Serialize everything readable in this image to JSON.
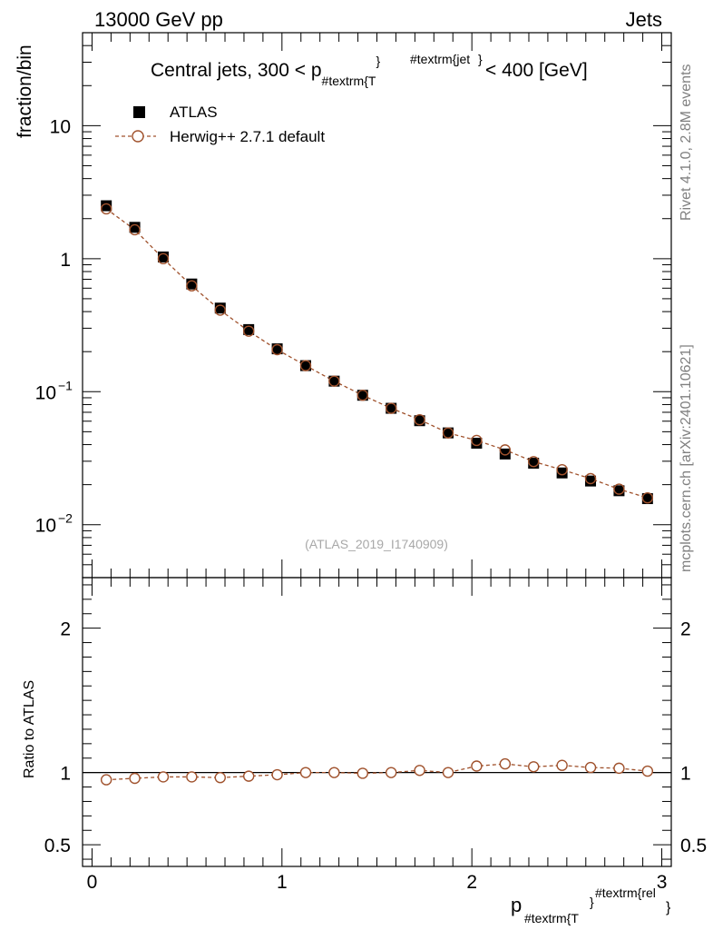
{
  "header": {
    "energy_label": "13000 GeV pp",
    "process_label": "Jets"
  },
  "side_labels": {
    "rivet": "Rivet 4.1.0,  2.8M events",
    "mcplots": "mcplots.cern.ch [arXiv:2401.10621]"
  },
  "colors": {
    "data": "#000000",
    "mc": "#a0522d",
    "ref_line": "#000000"
  },
  "chart_data": [
    {
      "type": "scatter",
      "panel": "main",
      "title_main": "Central jets, 300 < p",
      "title_sub": "#textrm{T",
      "title_sup": "#textrm{jet",
      "title_close": "}",
      "title_tail": " < 400 [GeV]",
      "ylabel": "fraction/bin",
      "yscale": "log",
      "ylim": [
        0.004,
        50
      ],
      "xlim": [
        -0.05,
        3.05
      ],
      "yticks": [
        {
          "value": 10,
          "label": "10",
          "exp": ""
        },
        {
          "value": 1,
          "label": "1",
          "exp": ""
        },
        {
          "value": 0.1,
          "label": "10",
          "exp": "−1"
        },
        {
          "value": 0.01,
          "label": "10",
          "exp": "−2"
        }
      ],
      "watermark": "(ATLAS_2019_I1740909)",
      "legend_position": "top-left",
      "x": [
        0.075,
        0.225,
        0.375,
        0.525,
        0.675,
        0.825,
        0.975,
        1.125,
        1.275,
        1.425,
        1.575,
        1.725,
        1.875,
        2.025,
        2.175,
        2.325,
        2.475,
        2.625,
        2.775,
        2.925
      ],
      "series": [
        {
          "name": "ATLAS",
          "marker": "square",
          "values": [
            2.5,
            1.72,
            1.03,
            0.645,
            0.425,
            0.293,
            0.21,
            0.157,
            0.12,
            0.094,
            0.075,
            0.0605,
            0.049,
            0.041,
            0.034,
            0.029,
            0.0245,
            0.0213,
            0.018,
            0.0157
          ]
        },
        {
          "name": "Herwig++ 2.7.1 default",
          "marker": "open-circle",
          "line": "dashed",
          "values": [
            2.37,
            1.65,
            1.0,
            0.625,
            0.41,
            0.285,
            0.207,
            0.157,
            0.12,
            0.094,
            0.075,
            0.0615,
            0.049,
            0.043,
            0.0365,
            0.0298,
            0.0259,
            0.0222,
            0.0185,
            0.0159
          ]
        }
      ]
    },
    {
      "type": "line",
      "panel": "ratio",
      "ylabel": "Ratio to ATLAS",
      "ylim": [
        0.35,
        2.35
      ],
      "xlim": [
        -0.05,
        3.05
      ],
      "yticks": [
        {
          "value": 2,
          "label": "2"
        },
        {
          "value": 1,
          "label": "1"
        },
        {
          "value": 0.5,
          "label": "0.5"
        }
      ],
      "xticks": [
        {
          "value": 0,
          "label": "0"
        },
        {
          "value": 1,
          "label": "1"
        },
        {
          "value": 2,
          "label": "2"
        },
        {
          "value": 3,
          "label": "3"
        }
      ],
      "xlabel_main": "p",
      "xlabel_sub": "#textrm{T",
      "xlabel_close": "}",
      "xlabel_sup": "#textrm{rel",
      "xlabel_tail": "}",
      "reference": 1.0,
      "x": [
        0.075,
        0.225,
        0.375,
        0.525,
        0.675,
        0.825,
        0.975,
        1.125,
        1.275,
        1.425,
        1.575,
        1.725,
        1.875,
        2.025,
        2.175,
        2.325,
        2.475,
        2.625,
        2.775,
        2.925
      ],
      "series": [
        {
          "name": "Herwig++ 2.7.1 default",
          "values": [
            0.95,
            0.96,
            0.97,
            0.97,
            0.965,
            0.975,
            0.985,
            1.0,
            1.0,
            0.995,
            1.0,
            1.015,
            1.0,
            1.045,
            1.06,
            1.04,
            1.05,
            1.035,
            1.03,
            1.01
          ]
        }
      ]
    }
  ]
}
